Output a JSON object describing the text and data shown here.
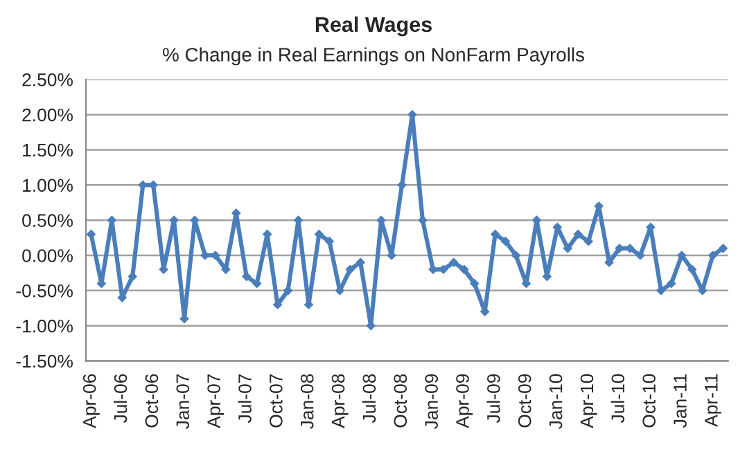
{
  "chart_data": {
    "type": "line",
    "title": "Real Wages",
    "subtitle": "% Change in Real Earnings on NonFarm Payrolls",
    "categories": [
      "Apr-06",
      null,
      null,
      "Jul-06",
      null,
      null,
      "Oct-06",
      null,
      null,
      "Jan-07",
      null,
      null,
      "Apr-07",
      null,
      null,
      "Jul-07",
      null,
      null,
      "Oct-07",
      null,
      null,
      "Jan-08",
      null,
      null,
      "Apr-08",
      null,
      null,
      "Jul-08",
      null,
      null,
      "Oct-08",
      null,
      null,
      "Jan-09",
      null,
      null,
      "Apr-09",
      null,
      null,
      "Jul-09",
      null,
      null,
      "Oct-09",
      null,
      null,
      "Jan-10",
      null,
      null,
      "Apr-10",
      null,
      null,
      "Jul-10",
      null,
      null,
      "Oct-10",
      null,
      null,
      "Jan-11",
      null,
      null,
      "Apr-11",
      null
    ],
    "series": [
      {
        "color": "#4a7ebb",
        "values": [
          0.3,
          -0.4,
          0.5,
          -0.6,
          -0.3,
          1.0,
          1.0,
          -0.2,
          0.5,
          -0.9,
          0.5,
          0.0,
          0.0,
          -0.2,
          0.6,
          -0.3,
          -0.4,
          0.3,
          -0.7,
          -0.5,
          0.5,
          -0.7,
          0.3,
          0.2,
          -0.5,
          -0.2,
          -0.1,
          -1.0,
          0.5,
          0.0,
          1.0,
          2.0,
          0.5,
          -0.2,
          -0.2,
          -0.1,
          -0.2,
          -0.4,
          -0.8,
          0.3,
          0.2,
          0.0,
          -0.4,
          0.5,
          -0.3,
          0.4,
          0.1,
          0.3,
          0.2,
          0.7,
          -0.1,
          0.1,
          0.1,
          0.0,
          0.4,
          -0.5,
          -0.4,
          0.0,
          -0.2,
          -0.5,
          0.0,
          0.1
        ]
      }
    ],
    "ylim": [
      -1.5,
      2.5
    ],
    "yticks": [
      {
        "value": -1.5,
        "label": "-1.50%"
      },
      {
        "value": -1.0,
        "label": "-1.00%"
      },
      {
        "value": -0.5,
        "label": "-0.50%"
      },
      {
        "value": 0.0,
        "label": "0.00%"
      },
      {
        "value": 0.5,
        "label": "0.50%"
      },
      {
        "value": 1.0,
        "label": "1.00%"
      },
      {
        "value": 1.5,
        "label": "1.50%"
      },
      {
        "value": 2.0,
        "label": "2.00%"
      },
      {
        "value": 2.5,
        "label": "2.50%"
      }
    ],
    "grid": "y",
    "marker": "diamond",
    "line_style": "solid",
    "legend": false
  }
}
